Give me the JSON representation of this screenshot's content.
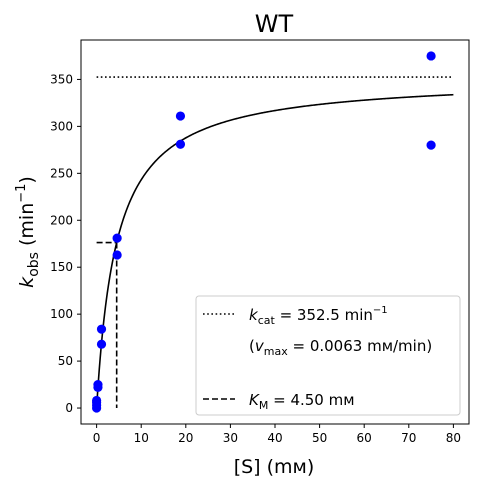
{
  "chart_data": {
    "type": "scatter",
    "title": "WT",
    "xlabel": "[S] (mм)",
    "ylabel": {
      "main": "k",
      "sub": "obs",
      "unit": " (min",
      "sup": "−1",
      "close": ")"
    },
    "xlim": [
      -3.5,
      83.5
    ],
    "ylim": [
      -17,
      392
    ],
    "xticks": [
      0,
      10,
      20,
      30,
      40,
      50,
      60,
      70,
      80
    ],
    "yticks": [
      0,
      50,
      100,
      150,
      200,
      250,
      300,
      350
    ],
    "grid": false,
    "legend_position": "lower-right",
    "colors": {
      "points": "#0000ff",
      "fit": "#000000"
    },
    "points": {
      "x": [
        0,
        0,
        0,
        0,
        0.3,
        0.3,
        1.1,
        1.1,
        4.6,
        4.6,
        18.8,
        18.8,
        75,
        75
      ],
      "y": [
        0,
        3,
        6,
        8,
        22,
        25,
        68,
        84,
        163,
        181,
        281,
        311,
        280,
        375
      ]
    },
    "fit": {
      "model": "michaelis-menten",
      "kcat": 352.5,
      "km": 4.5,
      "x_range": [
        0,
        80
      ]
    },
    "kcat_line": {
      "y": 352.5,
      "x_range": [
        0,
        80
      ],
      "style": "dotted"
    },
    "km_line": {
      "x": 4.5,
      "y": 176.25,
      "style": "dashed"
    },
    "legend": {
      "kcat_prefix": "k",
      "kcat_sub": "cat",
      "kcat_value": " = 352.5 min",
      "kcat_sup": "−1",
      "vmax_open": "(",
      "vmax_v": "v",
      "vmax_sub": "max",
      "vmax_value": " = 0.0063 mм/min)",
      "km_prefix": "K",
      "km_sub": "M",
      "km_value": " = 4.50 mм"
    }
  }
}
